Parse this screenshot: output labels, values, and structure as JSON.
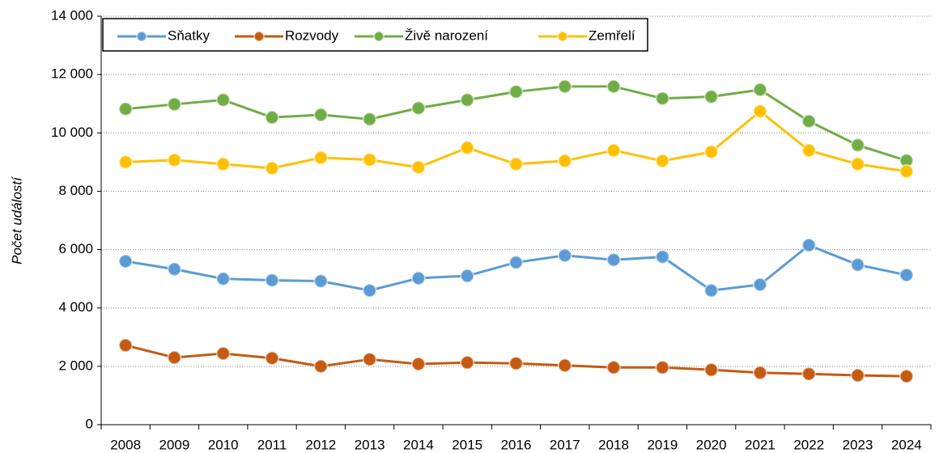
{
  "chart_data": {
    "type": "line",
    "y_label": "Počet událostí",
    "categories": [
      "2008",
      "2009",
      "2010",
      "2011",
      "2012",
      "2013",
      "2014",
      "2015",
      "2016",
      "2017",
      "2018",
      "2019",
      "2020",
      "2021",
      "2022",
      "2023",
      "2024"
    ],
    "series": [
      {
        "name": "Sňatky",
        "color": "#5b9bd5",
        "values": [
          5600,
          5330,
          5000,
          4950,
          4920,
          4600,
          5020,
          5100,
          5560,
          5800,
          5650,
          5750,
          4600,
          4800,
          6150,
          5480,
          5130
        ]
      },
      {
        "name": "Rozvody",
        "color": "#c55a11",
        "values": [
          2720,
          2300,
          2440,
          2280,
          2000,
          2240,
          2080,
          2130,
          2100,
          2030,
          1960,
          1960,
          1880,
          1780,
          1740,
          1690,
          1660
        ]
      },
      {
        "name": "Živě narození",
        "color": "#70ad47",
        "values": [
          10820,
          10980,
          11130,
          10530,
          10620,
          10470,
          10850,
          11130,
          11410,
          11590,
          11590,
          11180,
          11240,
          11480,
          10400,
          9580,
          9050
        ]
      },
      {
        "name": "Zemřelí",
        "color": "#ffc000",
        "values": [
          9000,
          9070,
          8930,
          8790,
          9150,
          9080,
          8820,
          9490,
          8930,
          9040,
          9400,
          9040,
          9350,
          10740,
          9400,
          8930,
          8680
        ]
      }
    ],
    "ylim": [
      0,
      14000
    ],
    "yticks": [
      0,
      {
        "value": 2000,
        "label": "2 000"
      },
      {
        "value": 4000,
        "label": "4 000"
      },
      {
        "value": 6000,
        "label": "6 000"
      },
      {
        "value": 8000,
        "label": "8 000"
      },
      {
        "value": 10000,
        "label": "10 000"
      },
      {
        "value": 12000,
        "label": "12 000"
      },
      {
        "value": 14000,
        "label": "14 000"
      }
    ],
    "grid": true,
    "legend": "top-left"
  }
}
